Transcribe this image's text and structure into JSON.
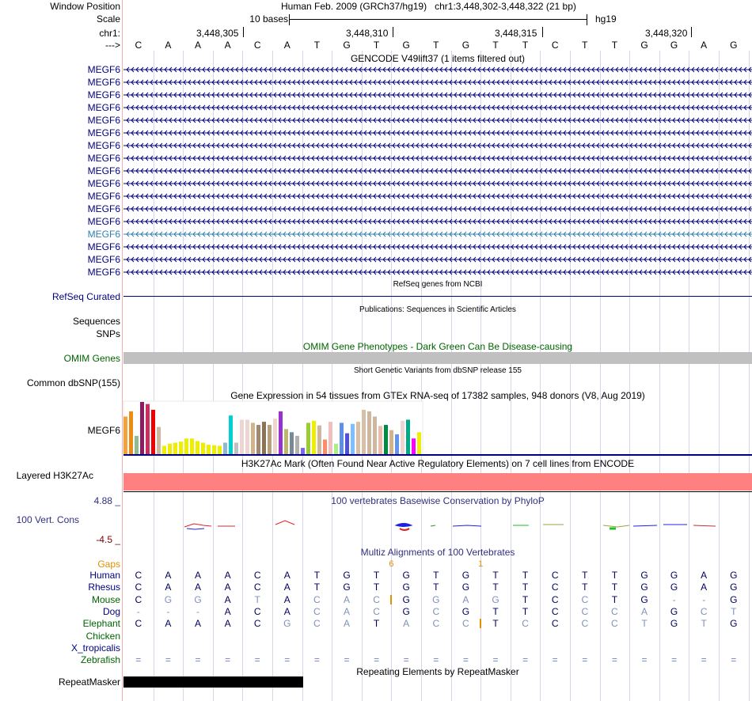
{
  "header": {
    "window_position_label": "Window Position",
    "window_position_value": "Human Feb. 2009 (GRCh37/hg19)   chr1:3,448,302-3,448,322 (21 bp)",
    "scale_label": "Scale",
    "scale_text": "10 bases",
    "assembly": "hg19",
    "chrom_label": "chr1:",
    "strand_label": "--->",
    "positions": [
      "3,448,305",
      "3,448,310",
      "3,448,315",
      "3,448,320"
    ]
  },
  "bases": [
    "C",
    "A",
    "A",
    "A",
    "C",
    "A",
    "T",
    "G",
    "T",
    "G",
    "T",
    "G",
    "T",
    "T",
    "C",
    "T",
    "T",
    "G",
    "G",
    "A",
    "G"
  ],
  "gencode": {
    "title": "GENCODE V49lift37 (1 items filtered out)",
    "genes": [
      "MEGF6",
      "MEGF6",
      "MEGF6",
      "MEGF6",
      "MEGF6",
      "MEGF6",
      "MEGF6",
      "MEGF6",
      "MEGF6",
      "MEGF6",
      "MEGF6",
      "MEGF6",
      "MEGF6",
      "MEGF6",
      "MEGF6",
      "MEGF6",
      "MEGF6"
    ]
  },
  "refseq": {
    "title": "RefSeq genes from NCBI",
    "label": "RefSeq Curated"
  },
  "publications": {
    "title": "Publications: Sequences in Scientific Articles",
    "label1": "Sequences",
    "label2": "SNPs"
  },
  "omim": {
    "title": "OMIM Gene Phenotypes - Dark Green Can Be Disease-causing",
    "label": "OMIM Genes"
  },
  "dbsnp": {
    "title": "Short Genetic Variants from dbSNP release 155",
    "label": "Common dbSNP(155)"
  },
  "gtex": {
    "title": "Gene Expression in 54 tissues from GTEx RNA-seq of 17382 samples, 948 donors (V8, Aug 2019)",
    "label": "MEGF6",
    "values": [
      0.72,
      0.82,
      0.35,
      1.0,
      0.96,
      0.85,
      0.52,
      0.16,
      0.2,
      0.22,
      0.24,
      0.3,
      0.3,
      0.25,
      0.22,
      0.18,
      0.17,
      0.16,
      0.22,
      0.74,
      0.22,
      0.66,
      0.66,
      0.6,
      0.56,
      0.62,
      0.56,
      0.68,
      0.82,
      0.48,
      0.42,
      0.35,
      0.12,
      0.6,
      0.64,
      0.55,
      0.28,
      0.62,
      0.2,
      0.6,
      0.4,
      0.58,
      0.62,
      0.85,
      0.82,
      0.72,
      0.54,
      0.56,
      0.46,
      0.38,
      0.64,
      0.66,
      0.3,
      0.42
    ],
    "colors": [
      "#f2a23c",
      "#ec8c14",
      "#8fbc8f",
      "#8b1c62",
      "#cd2d5d",
      "#ee0000",
      "#cdb79e",
      "#eeee00",
      "#eeee00",
      "#eeee00",
      "#eeee00",
      "#eeee00",
      "#eeee00",
      "#eeee00",
      "#eeee00",
      "#eeee00",
      "#eeee00",
      "#eeee00",
      "#8fb9d0",
      "#00ced1",
      "#c0c0c0",
      "#eed5d2",
      "#eed5d2",
      "#d2b48c",
      "#a0896f",
      "#8b7355",
      "#b8a07a",
      "#eed5d2",
      "#9932cc",
      "#bdb76b",
      "#778899",
      "#b0b0b0",
      "#7a67ee",
      "#9acd32",
      "#eeee00",
      "#cdb79e",
      "#ff8c69",
      "#f0c0c0",
      "#aaee88",
      "#5d8ee8",
      "#4f4fe0",
      "#7fbfff",
      "#d8bfa8",
      "#d8bfa8",
      "#cdb79e",
      "#cdb79e",
      "#eebbaa",
      "#008b45",
      "#d2b48c",
      "#6495ed",
      "#eed5d2",
      "#00aa88",
      "#ff00ff",
      "#eeee00"
    ]
  },
  "h3k27ac": {
    "title": "H3K27Ac Mark (Often Found Near Active Regulatory Elements) on 7 cell lines from ENCODE",
    "label": "Layered H3K27Ac",
    "color": "#ff8080"
  },
  "cons": {
    "title": "100 vertebrates Basewise Conservation by PhyloP",
    "label": "100 Vert. Cons",
    "max": "4.88 _",
    "min": "-4.5 _"
  },
  "multiz": {
    "title": "Multiz Alignments of 100 Vertebrates",
    "gaps_label": "Gaps",
    "gap_values": [
      {
        "index": 8,
        "text": "6"
      },
      {
        "index": 11,
        "text": "1"
      }
    ],
    "species": [
      {
        "name": "Human",
        "color": "#000080",
        "bases": [
          "C",
          "A",
          "A",
          "A",
          "C",
          "A",
          "T",
          "G",
          "T",
          "G",
          "T",
          "G",
          "T",
          "T",
          "C",
          "T",
          "T",
          "G",
          "G",
          "A",
          "G"
        ]
      },
      {
        "name": "Rhesus",
        "color": "#000080",
        "bases": [
          "C",
          "A",
          "A",
          "A",
          "C",
          "A",
          "T",
          "G",
          "T",
          "G",
          "T",
          "G",
          "T",
          "T",
          "C",
          "T",
          "T",
          "G",
          "G",
          "A",
          "G"
        ]
      },
      {
        "name": "Mouse",
        "color": "#006400",
        "bases": [
          "C",
          "G",
          "G",
          "A",
          "T",
          "A",
          "C",
          "A",
          "C",
          "G",
          "G",
          "A",
          "G",
          "T",
          "C",
          "C",
          "T",
          "G",
          "-",
          "-",
          "G"
        ]
      },
      {
        "name": "Dog",
        "color": "#000080",
        "bases": [
          "-",
          "-",
          "-",
          "A",
          "C",
          "A",
          "C",
          "A",
          "C",
          "G",
          "C",
          "G",
          "T",
          "T",
          "C",
          "C",
          "C",
          "A",
          "G",
          "C",
          "T"
        ]
      },
      {
        "name": "Elephant",
        "color": "#006400",
        "bases": [
          "C",
          "A",
          "A",
          "A",
          "C",
          "G",
          "C",
          "A",
          "T",
          "A",
          "C",
          "C",
          "T",
          "C",
          "C",
          "C",
          "C",
          "T",
          "G",
          "T",
          "G"
        ]
      },
      {
        "name": "Chicken",
        "color": "#006400",
        "bases": []
      },
      {
        "name": "X_tropicalis",
        "color": "#000080",
        "bases": []
      },
      {
        "name": "Zebrafish",
        "color": "#006400",
        "bases": [
          "=",
          "=",
          "=",
          "=",
          "=",
          "=",
          "=",
          "=",
          "=",
          "=",
          "=",
          "=",
          "=",
          "=",
          "=",
          "=",
          "=",
          "=",
          "=",
          "=",
          "="
        ]
      }
    ]
  },
  "repeat": {
    "title": "Repeating Elements by RepeatMasker",
    "label": "RepeatMasker"
  }
}
